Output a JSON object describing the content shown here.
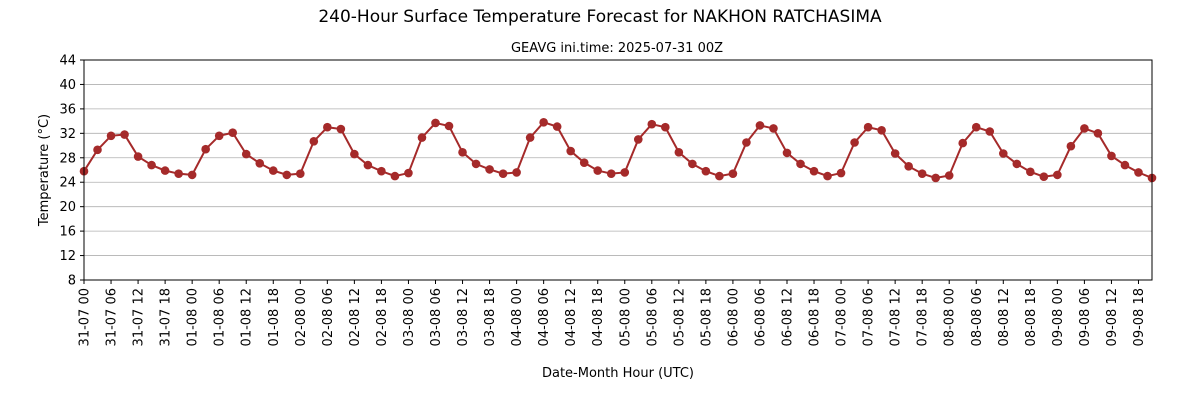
{
  "chart_data": {
    "type": "line",
    "title": "240-Hour Surface Temperature Forecast for NAKHON RATCHASIMA",
    "subtitle": "GEAVG ini.time: 2025-07-31 00Z",
    "xlabel": "Date-Month Hour (UTC)",
    "ylabel": "Temperature (°C)",
    "ylim": [
      8,
      44
    ],
    "yticks": [
      8,
      12,
      16,
      20,
      24,
      28,
      32,
      36,
      40,
      44
    ],
    "grid": "horizontal",
    "x_tick_labels": [
      "31-07 00",
      "31-07 06",
      "31-07 12",
      "31-07 18",
      "01-08 00",
      "01-08 06",
      "01-08 12",
      "01-08 18",
      "02-08 00",
      "02-08 06",
      "02-08 12",
      "02-08 18",
      "03-08 00",
      "03-08 06",
      "03-08 12",
      "03-08 18",
      "04-08 00",
      "04-08 06",
      "04-08 12",
      "04-08 18",
      "05-08 00",
      "05-08 06",
      "05-08 12",
      "05-08 18",
      "06-08 00",
      "06-08 06",
      "06-08 12",
      "06-08 18",
      "07-08 00",
      "07-08 06",
      "07-08 12",
      "07-08 18",
      "08-08 00",
      "08-08 06",
      "08-08 12",
      "08-08 18",
      "09-08 00",
      "09-08 06",
      "09-08 12",
      "09-08 18"
    ],
    "step_hours": 3,
    "series": [
      {
        "color": "#a52a2a",
        "values": [
          25.8,
          29.3,
          31.6,
          31.8,
          28.2,
          26.8,
          25.9,
          25.4,
          25.2,
          29.4,
          31.6,
          32.1,
          28.6,
          27.1,
          25.9,
          25.2,
          25.4,
          30.7,
          33.0,
          32.7,
          28.6,
          26.8,
          25.8,
          25.0,
          25.5,
          31.3,
          33.7,
          33.2,
          28.9,
          27.0,
          26.1,
          25.4,
          25.6,
          31.3,
          33.8,
          33.1,
          29.1,
          27.2,
          25.9,
          25.4,
          25.6,
          31.0,
          33.5,
          33.0,
          28.9,
          27.0,
          25.8,
          25.0,
          25.4,
          30.5,
          33.3,
          32.8,
          28.8,
          27.0,
          25.8,
          25.0,
          25.5,
          30.5,
          33.0,
          32.5,
          28.7,
          26.6,
          25.4,
          24.7,
          25.1,
          30.4,
          33.0,
          32.3,
          28.7,
          27.0,
          25.7,
          24.9,
          25.2,
          29.9,
          32.8,
          32.0,
          28.3,
          26.8,
          25.6,
          24.7
        ]
      }
    ]
  }
}
